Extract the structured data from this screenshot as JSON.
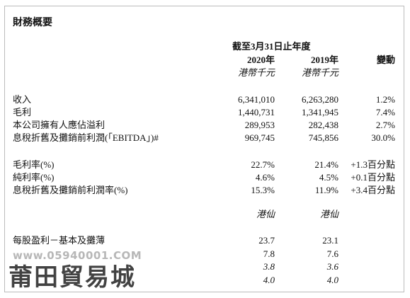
{
  "header": {
    "title": "財務概要"
  },
  "table": {
    "period": "截至3月31日止年度",
    "columns": [
      "2020年",
      "2019年",
      "變動"
    ],
    "unit_1": [
      "港幣千元",
      "港幣千元"
    ],
    "group_1": [
      {
        "label": "收入",
        "cells": [
          "6,341,010",
          "6,263,280",
          "1.2%"
        ]
      },
      {
        "label": "毛利",
        "cells": [
          "1,440,731",
          "1,341,945",
          "7.4%"
        ]
      },
      {
        "label": "本公司擁有人應佔溢利",
        "cells": [
          "289,953",
          "282,438",
          "2.7%"
        ]
      },
      {
        "label": "息稅折舊及攤銷前利潤(「EBITDA」)#",
        "cells": [
          "969,745",
          "745,856",
          "30.0%"
        ]
      }
    ],
    "group_2": [
      {
        "label": "毛利率(%)",
        "cells": [
          "22.7%",
          "21.4%",
          "+1.3百分點"
        ]
      },
      {
        "label": "純利率(%)",
        "cells": [
          "4.6%",
          "4.5%",
          "+0.1百分點"
        ]
      },
      {
        "label": "息稅折舊及攤銷前利潤率(%)",
        "cells": [
          "15.3%",
          "11.9%",
          "+3.4百分點"
        ]
      }
    ],
    "unit_2": [
      "港仙",
      "港仙"
    ],
    "group_3": [
      {
        "label": "每股盈利－基本及攤薄",
        "cells": [
          "23.7",
          "23.1"
        ]
      },
      {
        "cells": [
          "7.8",
          "7.6"
        ]
      },
      {
        "cells": [
          "3.8",
          "3.6"
        ],
        "italic": true
      },
      {
        "cells": [
          "4.0",
          "4.0"
        ],
        "italic": true
      }
    ]
  },
  "watermark": {
    "url": "www.05940001.COM",
    "name": "莆田貿易城"
  }
}
